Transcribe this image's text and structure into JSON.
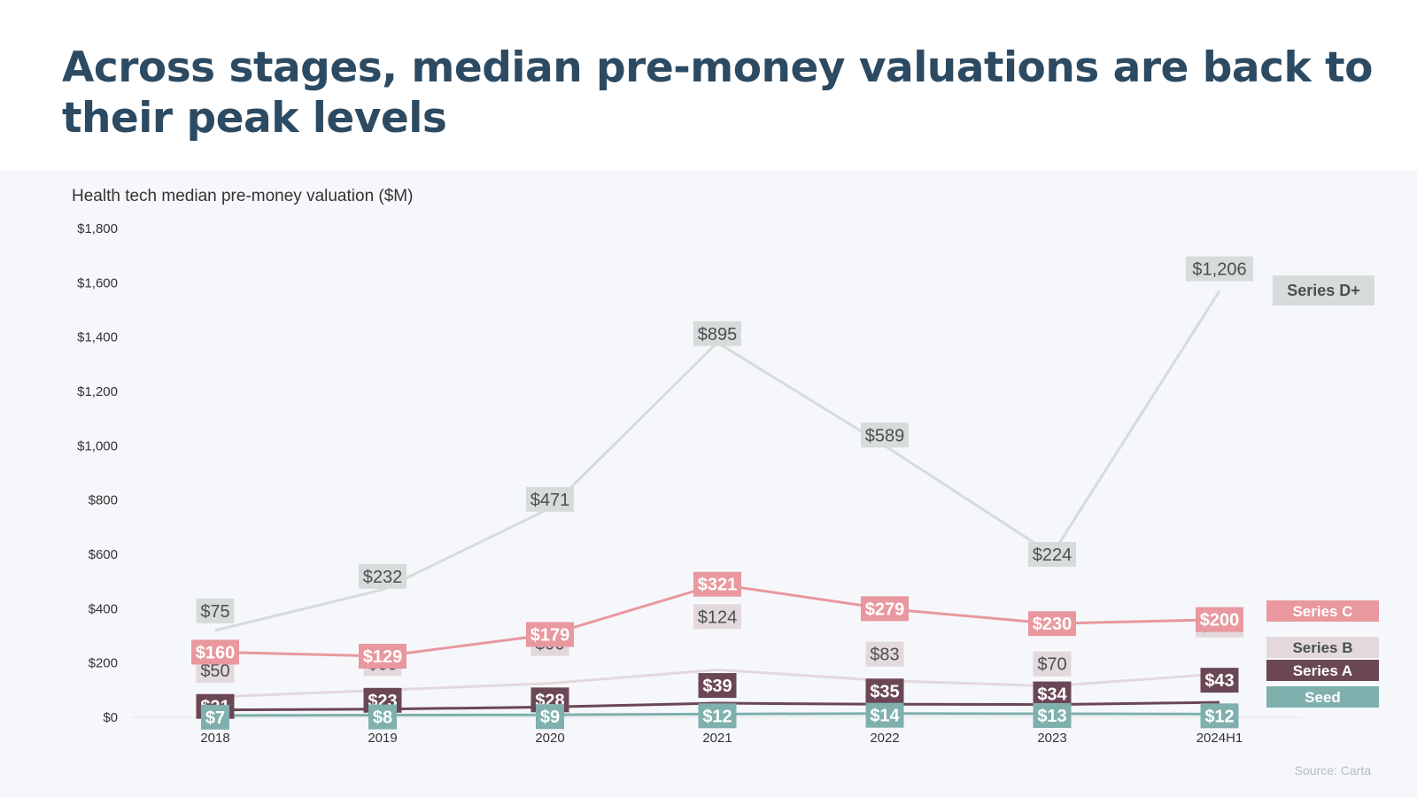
{
  "title": "Across stages, median pre-money valuations are back to their peak levels",
  "source": "Source: Carta",
  "chart_data": {
    "type": "line",
    "title": "Health tech median pre-money valuation ($M)",
    "categories": [
      "2018",
      "2019",
      "2020",
      "2021",
      "2022",
      "2023",
      "2024H1"
    ],
    "ylim": [
      0,
      1800
    ],
    "y_ticks": [
      0,
      200,
      400,
      600,
      800,
      1000,
      1200,
      1400,
      1600,
      1800
    ],
    "y_tick_labels": [
      "$0",
      "$200",
      "$400",
      "$600",
      "$800",
      "$1,000",
      "$1,200",
      "$1,400",
      "$1,600",
      "$1,800"
    ],
    "grid": false,
    "legend": "right",
    "series": [
      {
        "name": "Series D+",
        "line_color": "#d5dcda",
        "label_bg": "#d5dcda",
        "label_color": "#4a4f52",
        "values": [
          320,
          470,
          770,
          1380,
          1000,
          600,
          1570
        ],
        "labels": [
          "$75",
          "$232",
          "$471",
          "$895",
          "$589",
          "$224",
          "$1,206"
        ]
      },
      {
        "name": "Series C",
        "line_color": "#e8989e",
        "label_bg": "#e8989e",
        "label_color": "#ffffff",
        "values": [
          240,
          225,
          305,
          490,
          400,
          345,
          360
        ],
        "labels": [
          "$160",
          "$129",
          "$179",
          "$321",
          "$279",
          "$230",
          "$200"
        ]
      },
      {
        "name": "Series B",
        "line_color": "#e3d9dc",
        "label_bg": "#e3d9dc",
        "label_color": "#4a4f52",
        "values": [
          75,
          100,
          125,
          175,
          135,
          115,
          160
        ],
        "labels": [
          "$50",
          "$68",
          "$90",
          "$124",
          "$83",
          "$70",
          "$105"
        ]
      },
      {
        "name": "Series A",
        "line_color": "#6b4756",
        "label_bg": "#6b4756",
        "label_color": "#ffffff",
        "values": [
          27,
          30,
          38,
          52,
          48,
          47,
          55
        ],
        "labels": [
          "$21",
          "$23",
          "$28",
          "$39",
          "$35",
          "$34",
          "$43"
        ]
      },
      {
        "name": "Seed",
        "line_color": "#7fb0ad",
        "label_bg": "#7fb0ad",
        "label_color": "#ffffff",
        "values": [
          7,
          8,
          9,
          12,
          14,
          13,
          12
        ],
        "labels": [
          "$7",
          "$8",
          "$9",
          "$12",
          "$14",
          "$13",
          "$12"
        ]
      }
    ]
  }
}
